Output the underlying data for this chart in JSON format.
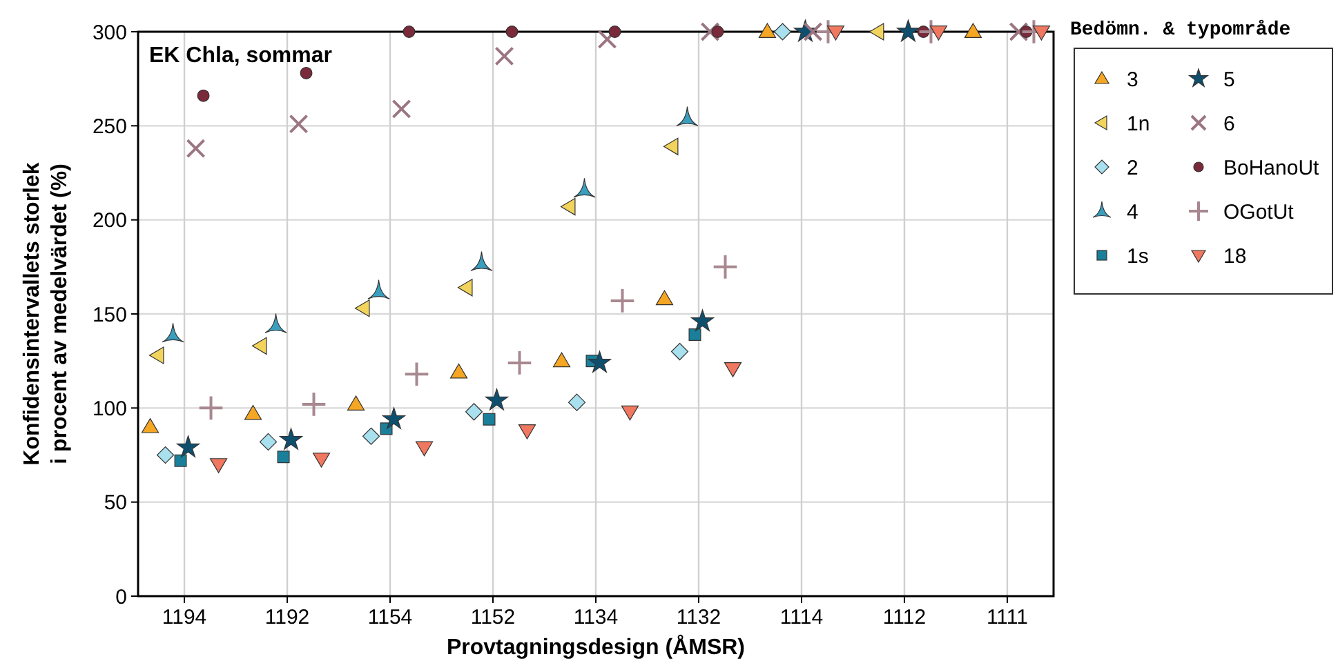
{
  "chart_data": {
    "type": "scatter",
    "title": "EK Chla, sommar",
    "xlabel": "Provtagningsdesign (ÅMSR)",
    "ylabel": "Konfidensintervallets storlek\ni procent av medelvärdet (%)",
    "legend_title": "Bedömn. & typområde",
    "legend": "right",
    "grid": true,
    "categories": [
      "1194",
      "1192",
      "1154",
      "1152",
      "1134",
      "1132",
      "1114",
      "1112",
      "1111"
    ],
    "ylim": [
      0,
      300
    ],
    "yticks": [
      0,
      50,
      100,
      150,
      200,
      250,
      300
    ],
    "series": [
      {
        "name": "3",
        "color": "#f5a623",
        "marker": "triangle",
        "values": [
          90,
          97,
          102,
          119,
          125,
          158,
          300,
          null,
          300
        ]
      },
      {
        "name": "1n",
        "color": "#f2d45c",
        "marker": "triangle-left",
        "values": [
          128,
          133,
          153,
          164,
          207,
          239,
          null,
          300,
          null
        ]
      },
      {
        "name": "2",
        "color": "#a8e0ee",
        "marker": "diamond",
        "values": [
          75,
          82,
          85,
          98,
          103,
          130,
          300,
          null,
          null
        ]
      },
      {
        "name": "4",
        "color": "#3a9fbf",
        "values": [
          139,
          144,
          162,
          177,
          216,
          254,
          null,
          null,
          null
        ]
      },
      {
        "name": "1s",
        "color": "#1a7f9a",
        "marker": "square",
        "values": [
          72,
          74,
          89,
          94,
          125,
          139,
          null,
          null,
          null
        ]
      },
      {
        "name": "5",
        "color": "#0e4f6e",
        "marker": "star",
        "values": [
          79,
          83,
          94,
          104,
          124,
          146,
          300,
          300,
          null
        ]
      },
      {
        "name": "6",
        "color": "#9b7682",
        "marker": "cross",
        "values": [
          238,
          251,
          259,
          287,
          296,
          300,
          300,
          null,
          300
        ]
      },
      {
        "name": "BoHanoUt",
        "color": "#7a2a3a",
        "marker": "circle",
        "values": [
          266,
          278,
          300,
          300,
          300,
          300,
          null,
          300,
          300
        ]
      },
      {
        "name": "OGotUt",
        "color": "#a88890",
        "marker": "plus",
        "values": [
          100,
          102,
          118,
          124,
          157,
          175,
          300,
          300,
          300
        ]
      },
      {
        "name": "18",
        "color": "#f07860",
        "marker": "triangle-down",
        "values": [
          70,
          73,
          79,
          88,
          98,
          121,
          300,
          300,
          300
        ]
      }
    ]
  }
}
